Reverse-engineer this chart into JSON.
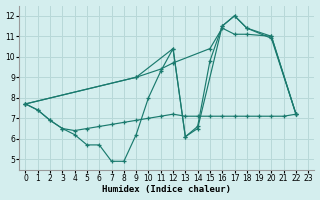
{
  "xlabel": "Humidex (Indice chaleur)",
  "xlim": [
    -0.5,
    23.5
  ],
  "ylim": [
    4.5,
    12.5
  ],
  "yticks": [
    5,
    6,
    7,
    8,
    9,
    10,
    11,
    12
  ],
  "xticks": [
    0,
    1,
    2,
    3,
    4,
    5,
    6,
    7,
    8,
    9,
    10,
    11,
    12,
    13,
    14,
    15,
    16,
    17,
    18,
    19,
    20,
    21,
    22,
    23
  ],
  "bg_color": "#d4eeee",
  "grid_color": "#b8d8d8",
  "line_color": "#1a7a6e",
  "lines": [
    {
      "x": [
        0,
        1,
        2,
        3,
        4,
        5,
        6,
        7,
        8,
        9,
        10,
        11,
        12,
        13,
        14,
        16,
        17,
        18,
        20,
        22
      ],
      "y": [
        7.7,
        7.4,
        6.9,
        6.5,
        6.2,
        5.7,
        5.7,
        4.9,
        4.9,
        6.2,
        8.0,
        9.3,
        10.4,
        6.1,
        6.5,
        11.5,
        12.0,
        11.4,
        10.9,
        7.2
      ]
    },
    {
      "x": [
        0,
        1,
        2,
        3,
        4,
        5,
        6,
        7,
        8,
        9,
        10,
        11,
        12,
        13,
        14,
        15,
        16,
        17,
        18,
        19,
        20,
        21,
        22
      ],
      "y": [
        7.7,
        7.4,
        6.9,
        6.5,
        6.4,
        6.5,
        6.6,
        6.7,
        6.8,
        6.9,
        7.0,
        7.1,
        7.2,
        7.1,
        7.1,
        7.1,
        7.1,
        7.1,
        7.1,
        7.1,
        7.1,
        7.1,
        7.2
      ]
    },
    {
      "x": [
        0,
        9,
        11,
        12,
        15,
        16,
        17,
        18,
        20,
        22
      ],
      "y": [
        7.7,
        9.0,
        9.4,
        9.7,
        10.4,
        11.4,
        11.1,
        11.1,
        11.0,
        7.2
      ]
    },
    {
      "x": [
        0,
        9,
        12,
        13,
        14,
        15,
        16,
        17,
        18,
        20,
        22
      ],
      "y": [
        7.7,
        9.0,
        10.4,
        6.1,
        6.6,
        9.8,
        11.5,
        12.0,
        11.4,
        11.0,
        7.2
      ]
    }
  ]
}
